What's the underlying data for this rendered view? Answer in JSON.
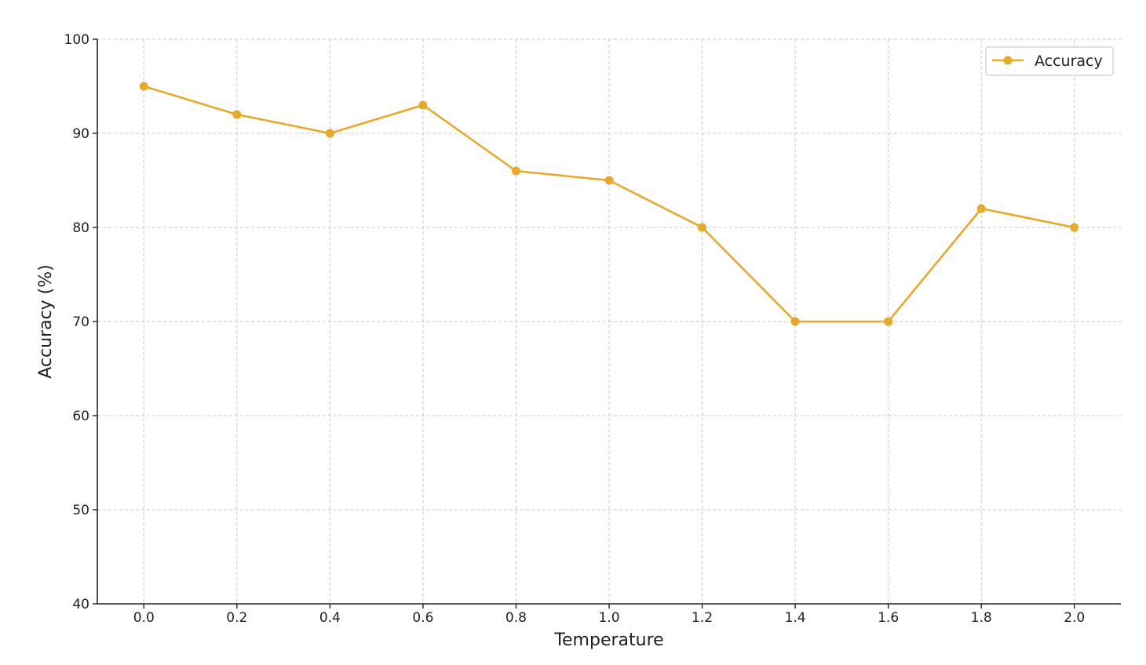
{
  "chart_data": {
    "type": "line",
    "title": "",
    "xlabel": "Temperature",
    "ylabel": "Accuracy (%)",
    "x": [
      0.0,
      0.2,
      0.4,
      0.6,
      0.8,
      1.0,
      1.2,
      1.4,
      1.6,
      1.8,
      2.0
    ],
    "x_tick_labels": [
      "0.0",
      "0.2",
      "0.4",
      "0.6",
      "0.8",
      "1.0",
      "1.2",
      "1.4",
      "1.6",
      "1.8",
      "2.0"
    ],
    "y_ticks": [
      40,
      50,
      60,
      70,
      80,
      90,
      100
    ],
    "y_tick_labels": [
      "40",
      "50",
      "60",
      "70",
      "80",
      "90",
      "100"
    ],
    "xlim": [
      -0.1,
      2.1
    ],
    "ylim": [
      40,
      100
    ],
    "grid": true,
    "legend_position": "top-right",
    "series": [
      {
        "name": "Accuracy",
        "color": "#E8A92A",
        "marker": "circle",
        "values": [
          95,
          92,
          90,
          93,
          86,
          85,
          80,
          70,
          70,
          82,
          80
        ]
      }
    ]
  }
}
